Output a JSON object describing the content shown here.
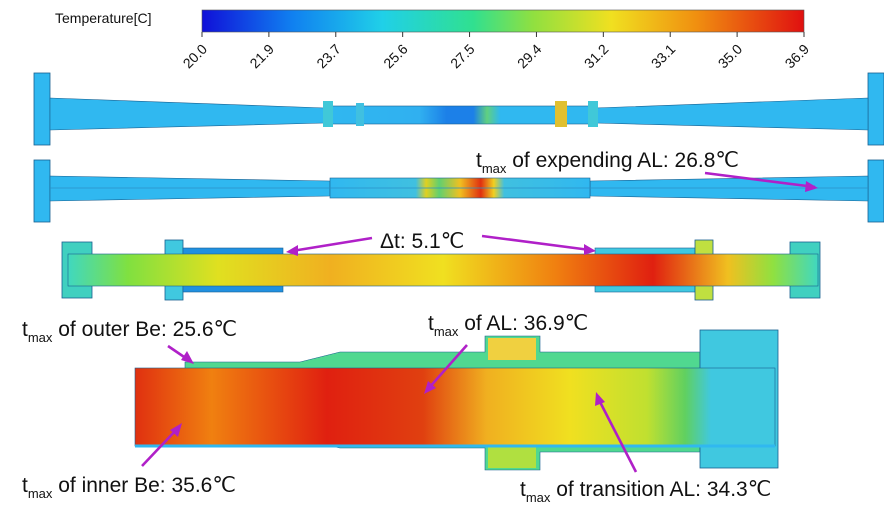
{
  "colorbar": {
    "title": "Temperature[C]",
    "ticks": [
      "20.0",
      "21.9",
      "23.7",
      "25.6",
      "27.5",
      "29.4",
      "31.2",
      "33.1",
      "35.0",
      "36.9"
    ],
    "min": 20.0,
    "max": 36.9
  },
  "annotations": {
    "expending_al": {
      "t": "t",
      "sub": "max",
      "rest": " of  expending AL: 26.8℃"
    },
    "delta_t": {
      "text": "Δt: 5.1℃"
    },
    "outer_be": {
      "t": "t",
      "sub": "max",
      "rest": " of outer Be: 25.6℃"
    },
    "al": {
      "t": "t",
      "sub": "max",
      "rest": " of AL: 36.9℃"
    },
    "inner_be": {
      "t": "t",
      "sub": "max",
      "rest": " of inner Be: 35.6℃"
    },
    "transition_al": {
      "t": "t",
      "sub": "max",
      "rest": " of  transition AL: 34.3℃"
    }
  },
  "colors": {
    "arrow": "#b020c8",
    "cold": "#1030d0",
    "cool": "#20b8f0",
    "mid": "#40d080",
    "warm": "#f0e020",
    "hot": "#e02010"
  }
}
